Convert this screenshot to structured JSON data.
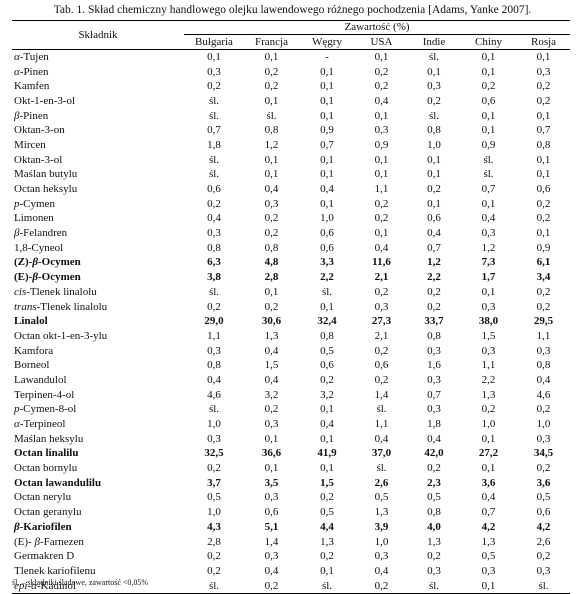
{
  "caption": "Tab. 1. Skład chemiczny handlowego olejku lawendowego różnego pochodzenia [Adams, Yanke 2007].",
  "header": {
    "component": "Składnik",
    "content": "Zawartość (%)",
    "countries": [
      "Bułgaria",
      "Francja",
      "Węgry",
      "USA",
      "Indie",
      "Chiny",
      "Rosja"
    ]
  },
  "rows": [
    {
      "pre": "α",
      "name": "-Tujen",
      "v": [
        "0,1",
        "0,1",
        "-",
        "0,1",
        "śl.",
        "0,1",
        "0,1"
      ]
    },
    {
      "pre": "α",
      "name": "-Pinen",
      "v": [
        "0,3",
        "0,2",
        "0,1",
        "0,2",
        "0,1",
        "0,1",
        "0,3"
      ]
    },
    {
      "name": "Kamfen",
      "v": [
        "0,2",
        "0,2",
        "0,1",
        "0,2",
        "0,3",
        "0,2",
        "0,2"
      ]
    },
    {
      "name": "Okt-1-en-3-ol",
      "v": [
        "śl.",
        "0,1",
        "0,1",
        "0,4",
        "0,2",
        "0,6",
        "0,2"
      ]
    },
    {
      "pre": "β",
      "name": "-Pinen",
      "v": [
        "śl.",
        "śl.",
        "0,1",
        "0,1",
        "śl.",
        "0,1",
        "0,1"
      ]
    },
    {
      "name": "Oktan-3-on",
      "v": [
        "0,7",
        "0,8",
        "0,9",
        "0,3",
        "0,8",
        "0,1",
        "0,7"
      ]
    },
    {
      "name": "Mircen",
      "v": [
        "1,8",
        "1,2",
        "0,7",
        "0,9",
        "1,0",
        "0,9",
        "0,8"
      ]
    },
    {
      "name": "Oktan-3-ol",
      "v": [
        "śl.",
        "0,1",
        "0,1",
        "0,1",
        "0,1",
        "śl.",
        "0,1"
      ]
    },
    {
      "name": "Maślan butylu",
      "v": [
        "śl.",
        "0,1",
        "0,1",
        "0,1",
        "0,1",
        "śl.",
        "0,1"
      ]
    },
    {
      "name": "Octan heksylu",
      "v": [
        "0,6",
        "0,4",
        "0,4",
        "1,1",
        "0,2",
        "0,7",
        "0,6"
      ]
    },
    {
      "pre": "p",
      "name": "-Cymen",
      "v": [
        "0,2",
        "0,3",
        "0,1",
        "0,2",
        "0,1",
        "0,1",
        "0,2"
      ]
    },
    {
      "name": "Limonen",
      "v": [
        "0,4",
        "0,2",
        "1,0",
        "0,2",
        "0,6",
        "0,4",
        "0,2"
      ]
    },
    {
      "pre": "β",
      "name": "-Felandren",
      "v": [
        "0,3",
        "0,2",
        "0,6",
        "0,1",
        "0,4",
        "0,3",
        "0,1"
      ]
    },
    {
      "name": "1,8-Cyneol",
      "v": [
        "0,8",
        "0,8",
        "0,6",
        "0,4",
        "0,7",
        "1,2",
        "0,9"
      ]
    },
    {
      "bold": true,
      "lead": "(Z)-",
      "pre": "β",
      "name": "-Ocymen",
      "v": [
        "6,3",
        "4,8",
        "3,3",
        "11,6",
        "1,2",
        "7,3",
        "6,1"
      ]
    },
    {
      "bold": true,
      "lead": "(E)-",
      "pre": "β",
      "name": "-Ocymen",
      "v": [
        "3,8",
        "2,8",
        "2,2",
        "2,1",
        "2,2",
        "1,7",
        "3,4"
      ]
    },
    {
      "pre": "cis",
      "name": "-Tlenek linalolu",
      "v": [
        "śl.",
        "0,1",
        "śl.",
        "0,2",
        "0,2",
        "0,1",
        "0,2"
      ]
    },
    {
      "pre": "trans",
      "name": "-Tlenek linalolu",
      "v": [
        "0,2",
        "0,2",
        "0,1",
        "0,3",
        "0,2",
        "0,3",
        "0,2"
      ]
    },
    {
      "bold": true,
      "name": "Linalol",
      "v": [
        "29,0",
        "30,6",
        "32,4",
        "27,3",
        "33,7",
        "38,0",
        "29,5"
      ]
    },
    {
      "name": "Octan okt-1-en-3-ylu",
      "v": [
        "1,1",
        "1,3",
        "0,8",
        "2,1",
        "0,8",
        "1,5",
        "1,1"
      ]
    },
    {
      "name": "Kamfora",
      "v": [
        "0,3",
        "0,4",
        "0,5",
        "0,2",
        "0,3",
        "0,3",
        "0,3"
      ]
    },
    {
      "name": "Borneol",
      "v": [
        "0,8",
        "1,5",
        "0,6",
        "0,6",
        "1,6",
        "1,1",
        "0,8"
      ]
    },
    {
      "name": "Lawandulol",
      "v": [
        "0,4",
        "0,4",
        "0,2",
        "0,2",
        "0,3",
        "2,2",
        "0,4"
      ]
    },
    {
      "name": "Terpinen-4-ol",
      "v": [
        "4,6",
        "3,2",
        "3,2",
        "1,4",
        "0,7",
        "1,3",
        "4,6"
      ]
    },
    {
      "pre": "p",
      "name": "-Cymen-8-ol",
      "v": [
        "śl.",
        "0,2",
        "0,1",
        "śl.",
        "0,3",
        "0,2",
        "0,2"
      ]
    },
    {
      "pre": "α",
      "name": "-Terpineol",
      "v": [
        "1,0",
        "0,3",
        "0,4",
        "1,1",
        "1,8",
        "1,0",
        "1,0"
      ]
    },
    {
      "name": "Maślan heksylu",
      "v": [
        "0,3",
        "0,1",
        "0,1",
        "0,4",
        "0,4",
        "0,1",
        "0,3"
      ]
    },
    {
      "bold": true,
      "name": "Octan linalilu",
      "v": [
        "32,5",
        "36,6",
        "41,9",
        "37,0",
        "42,0",
        "27,2",
        "34,5"
      ]
    },
    {
      "name": "Octan bornylu",
      "v": [
        "0,2",
        "0,1",
        "0,1",
        "śl.",
        "0,2",
        "0,1",
        "0,2"
      ]
    },
    {
      "bold": true,
      "name": "Octan lawandulilu",
      "v": [
        "3,7",
        "3,5",
        "1,5",
        "2,6",
        "2,3",
        "3,6",
        "3,6"
      ]
    },
    {
      "name": "Octan nerylu",
      "v": [
        "0,5",
        "0,3",
        "0,2",
        "0,5",
        "0,5",
        "0,4",
        "0,5"
      ]
    },
    {
      "name": "Octan geranylu",
      "v": [
        "1,0",
        "0,6",
        "0,5",
        "1,3",
        "0,8",
        "0,7",
        "0,6"
      ]
    },
    {
      "bold": true,
      "pre": "β",
      "name": "-Kariofilen",
      "v": [
        "4,3",
        "5,1",
        "4,4",
        "3,9",
        "4,0",
        "4,2",
        "4,2"
      ]
    },
    {
      "lead": "(E)- ",
      "pre": "β",
      "name": "-Farnezen",
      "v": [
        "2,8",
        "1,4",
        "1,3",
        "1,0",
        "1,3",
        "1,3",
        "2,6"
      ]
    },
    {
      "name": "Germakren D",
      "v": [
        "0,2",
        "0,3",
        "0,2",
        "0,3",
        "0,2",
        "0,5",
        "0,2"
      ]
    },
    {
      "name": "Tlenek kariofilenu",
      "v": [
        "0,2",
        "0,4",
        "0,1",
        "0,4",
        "0,3",
        "0,3",
        "0,3"
      ]
    },
    {
      "pre": "epi-α",
      "name": "-Kadinol",
      "v": [
        "śl.",
        "0,2",
        "śl.",
        "0,2",
        "śl.",
        "0,1",
        "śl."
      ]
    }
  ],
  "footnote": "śl. – składniki śladowe, zawartość <0,05%"
}
